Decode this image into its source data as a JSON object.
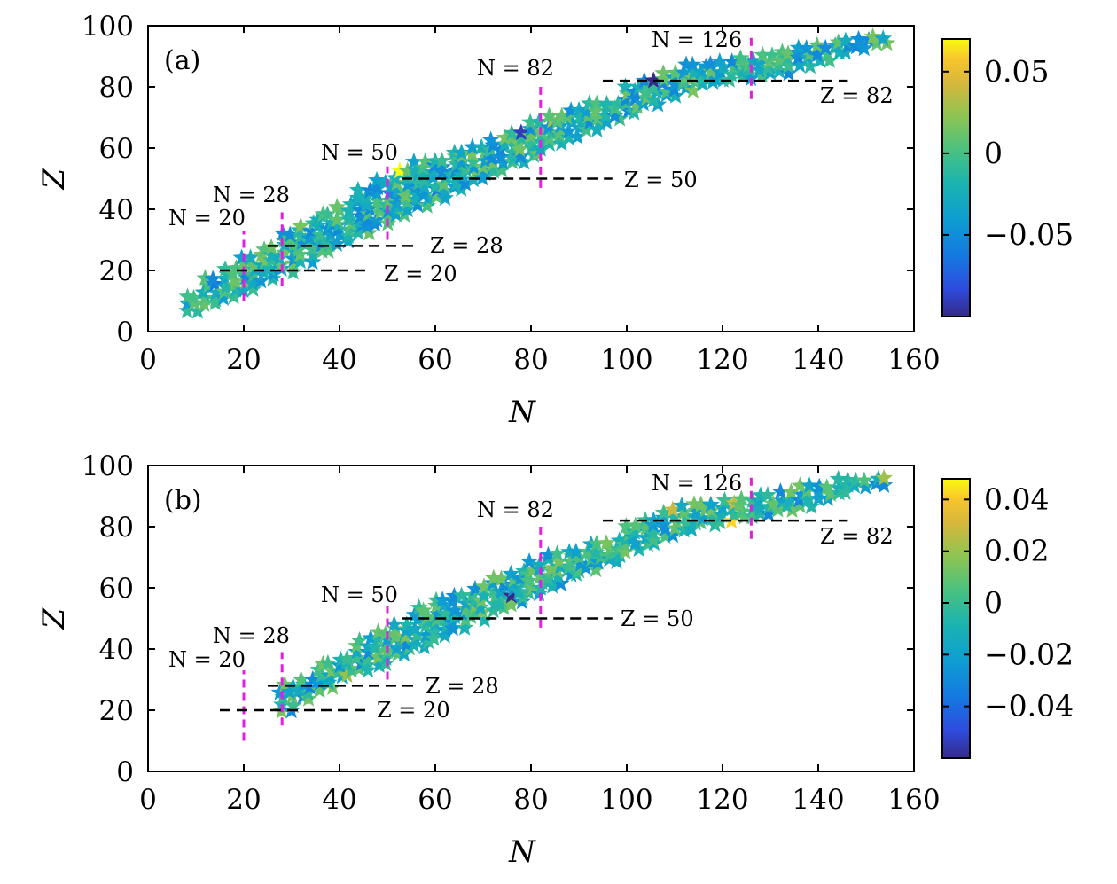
{
  "chart_data": [
    {
      "type": "scatter",
      "panel_label": "(a)",
      "xlabel": "N",
      "ylabel": "Z",
      "xlim": [
        0,
        160
      ],
      "ylim": [
        0,
        100
      ],
      "xticks": [
        "0",
        "20",
        "40",
        "60",
        "80",
        "100",
        "120",
        "140",
        "160"
      ],
      "yticks": [
        "0",
        "20",
        "40",
        "60",
        "80",
        "100"
      ],
      "marker": "star",
      "colorbar": {
        "min": -0.1,
        "max": 0.07,
        "ticks": [
          0.05,
          0,
          -0.05
        ],
        "tick_labels": [
          "0.05",
          "0",
          "−0.05"
        ]
      },
      "neutron_magic": [
        {
          "n": 20,
          "label": "N = 20",
          "zmin": 10,
          "zmax": 33
        },
        {
          "n": 28,
          "label": "N = 28",
          "zmin": 15,
          "zmax": 39
        },
        {
          "n": 50,
          "label": "N = 50",
          "zmin": 30,
          "zmax": 54
        },
        {
          "n": 82,
          "label": "N = 82",
          "zmin": 47,
          "zmax": 80
        },
        {
          "n": 126,
          "label": "N = 126",
          "zmin": 76,
          "zmax": 97
        }
      ],
      "proton_magic": [
        {
          "z": 20,
          "label": "Z = 20",
          "nmin": 15,
          "nmax": 46
        },
        {
          "z": 28,
          "label": "Z = 28",
          "nmin": 25,
          "nmax": 56
        },
        {
          "z": 50,
          "label": "Z = 50",
          "nmin": 53,
          "nmax": 97
        },
        {
          "z": 82,
          "label": "Z = 82",
          "nmin": 95,
          "nmax": 146
        }
      ],
      "band": [
        [
          8,
          7,
          12
        ],
        [
          12,
          9,
          18
        ],
        [
          16,
          11,
          22
        ],
        [
          20,
          14,
          25
        ],
        [
          24,
          17,
          28
        ],
        [
          28,
          20,
          33
        ],
        [
          32,
          23,
          36
        ],
        [
          36,
          26,
          39
        ],
        [
          40,
          29,
          42
        ],
        [
          44,
          32,
          46
        ],
        [
          48,
          35,
          50
        ],
        [
          52,
          38,
          52
        ],
        [
          56,
          41,
          55
        ],
        [
          60,
          44,
          56
        ],
        [
          64,
          47,
          59
        ],
        [
          68,
          50,
          61
        ],
        [
          72,
          53,
          63
        ],
        [
          76,
          55,
          66
        ],
        [
          80,
          58,
          69
        ],
        [
          84,
          61,
          71
        ],
        [
          88,
          64,
          72
        ],
        [
          92,
          66,
          74
        ],
        [
          96,
          69,
          76
        ],
        [
          100,
          72,
          80
        ],
        [
          104,
          74,
          83
        ],
        [
          108,
          77,
          85
        ],
        [
          112,
          79,
          87
        ],
        [
          116,
          81,
          88
        ],
        [
          120,
          82,
          89
        ],
        [
          124,
          83,
          90
        ],
        [
          128,
          84,
          91
        ],
        [
          132,
          85,
          92
        ],
        [
          136,
          87,
          93
        ],
        [
          140,
          89,
          94
        ],
        [
          144,
          91,
          95
        ],
        [
          148,
          93,
          96
        ],
        [
          152,
          94,
          96
        ]
      ]
    },
    {
      "type": "scatter",
      "panel_label": "(b)",
      "xlabel": "N",
      "ylabel": "Z",
      "xlim": [
        0,
        160
      ],
      "ylim": [
        0,
        100
      ],
      "xticks": [
        "0",
        "20",
        "40",
        "60",
        "80",
        "100",
        "120",
        "140",
        "160"
      ],
      "yticks": [
        "0",
        "20",
        "40",
        "60",
        "80",
        "100"
      ],
      "marker": "star",
      "colorbar": {
        "min": -0.06,
        "max": 0.048,
        "ticks": [
          0.04,
          0.02,
          0,
          -0.02,
          -0.04
        ],
        "tick_labels": [
          "0.04",
          "0.02",
          "0",
          "−0.02",
          "−0.04"
        ]
      },
      "neutron_magic": [
        {
          "n": 20,
          "label": "N = 20",
          "zmin": 10,
          "zmax": 33
        },
        {
          "n": 28,
          "label": "N = 28",
          "zmin": 15,
          "zmax": 39
        },
        {
          "n": 50,
          "label": "N = 50",
          "zmin": 30,
          "zmax": 54
        },
        {
          "n": 82,
          "label": "N = 82",
          "zmin": 47,
          "zmax": 80
        },
        {
          "n": 126,
          "label": "N = 126",
          "zmin": 76,
          "zmax": 97
        }
      ],
      "proton_magic": [
        {
          "z": 20,
          "label": "Z = 20",
          "nmin": 15,
          "nmax": 46
        },
        {
          "z": 28,
          "label": "Z = 28",
          "nmin": 25,
          "nmax": 56
        },
        {
          "z": 50,
          "label": "Z = 50",
          "nmin": 53,
          "nmax": 97
        },
        {
          "z": 82,
          "label": "Z = 82",
          "nmin": 95,
          "nmax": 146
        }
      ],
      "band": [
        [
          28,
          20,
          28
        ],
        [
          32,
          24,
          31
        ],
        [
          36,
          27,
          36
        ],
        [
          40,
          31,
          38
        ],
        [
          44,
          33,
          43
        ],
        [
          48,
          35,
          45
        ],
        [
          52,
          38,
          49
        ],
        [
          56,
          41,
          54
        ],
        [
          60,
          44,
          56
        ],
        [
          64,
          47,
          58
        ],
        [
          68,
          50,
          61
        ],
        [
          72,
          53,
          63
        ],
        [
          76,
          55,
          66
        ],
        [
          80,
          58,
          69
        ],
        [
          84,
          61,
          71
        ],
        [
          88,
          64,
          72
        ],
        [
          92,
          66,
          74
        ],
        [
          96,
          69,
          76
        ],
        [
          100,
          72,
          80
        ],
        [
          104,
          74,
          83
        ],
        [
          108,
          77,
          85
        ],
        [
          112,
          79,
          87
        ],
        [
          116,
          81,
          88
        ],
        [
          120,
          82,
          89
        ],
        [
          124,
          83,
          90
        ],
        [
          128,
          84,
          91
        ],
        [
          132,
          85,
          92
        ],
        [
          136,
          87,
          93
        ],
        [
          140,
          89,
          94
        ],
        [
          144,
          91,
          95
        ],
        [
          148,
          93,
          96
        ],
        [
          152,
          94,
          96
        ]
      ]
    }
  ]
}
